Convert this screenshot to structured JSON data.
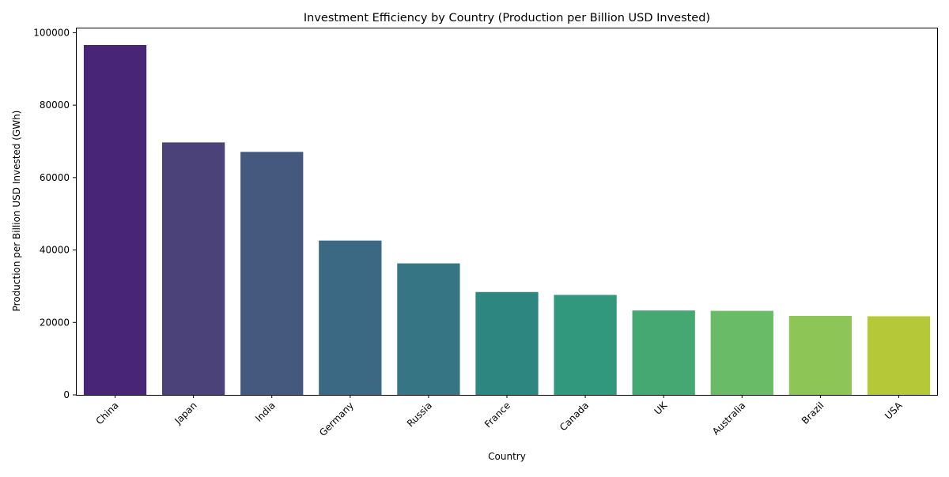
{
  "chart_data": {
    "type": "bar",
    "title": "Investment Efficiency by Country (Production per Billion USD Invested)",
    "xlabel": "Country",
    "ylabel": "Production per Billion USD Invested (GWh)",
    "categories": [
      "China",
      "Japan",
      "India",
      "Germany",
      "Russia",
      "France",
      "Canada",
      "UK",
      "Australia",
      "Brazil",
      "USA"
    ],
    "values": [
      96600,
      69700,
      67100,
      42600,
      36300,
      28400,
      27600,
      23300,
      23200,
      21800,
      21700
    ],
    "colors": [
      "#482576",
      "#4b4279",
      "#45597f",
      "#3b6882",
      "#357584",
      "#2e8680",
      "#31977d",
      "#45a873",
      "#6abb68",
      "#8dc556",
      "#b5c838"
    ],
    "ylim": [
      0,
      101400
    ],
    "yticks": [
      0,
      20000,
      40000,
      60000,
      80000,
      100000
    ],
    "xtick_rotation_deg": 45,
    "grid": false,
    "legend": "none"
  }
}
